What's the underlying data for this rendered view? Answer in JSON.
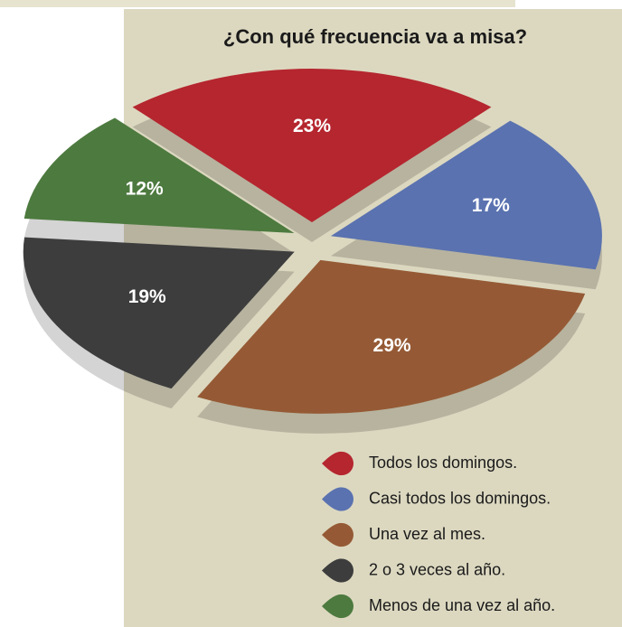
{
  "chart_data": {
    "type": "pie",
    "title": "¿Con qué frecuencia va a misa?",
    "categories": [
      "Todos los domingos.",
      "Casi todos los domingos.",
      "Una vez al mes.",
      "2 o 3 veces al año.",
      "Menos de una vez al año."
    ],
    "values": [
      23,
      17,
      29,
      19,
      12
    ],
    "value_labels": [
      "23%",
      "17%",
      "29%",
      "19%",
      "12%"
    ],
    "colors": [
      "#b5262f",
      "#5a72b0",
      "#955a35",
      "#3d3d3d",
      "#4d7a3f"
    ]
  }
}
